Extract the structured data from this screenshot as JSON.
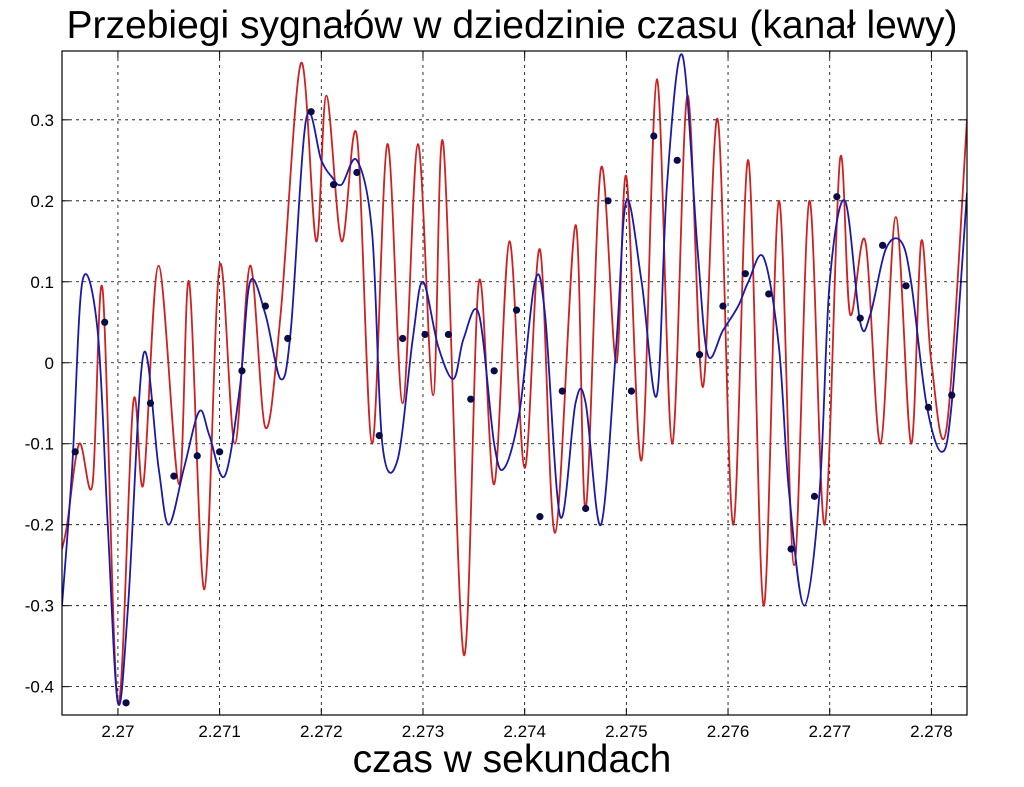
{
  "chart_data": {
    "type": "line",
    "title": "Przebiegi sygnałów w dziedzinie czasu (kanał lewy)",
    "xlabel": "czas w sekundach",
    "ylabel": "",
    "xlim": [
      2.26945,
      2.27835
    ],
    "ylim": [
      -0.435,
      0.385
    ],
    "grid": true,
    "xticks": [
      2.27,
      2.271,
      2.272,
      2.273,
      2.274,
      2.275,
      2.276,
      2.277,
      2.278
    ],
    "xtick_labels": [
      "2.27",
      "2.271",
      "2.272",
      "2.273",
      "2.274",
      "2.275",
      "2.276",
      "2.277",
      "2.278"
    ],
    "yticks": [
      -0.4,
      -0.3,
      -0.2,
      -0.1,
      0,
      0.1,
      0.2,
      0.3
    ],
    "ytick_labels": [
      "-0.4",
      "-0.3",
      "-0.2",
      "-0.1",
      "0",
      "0.1",
      "0.2",
      "0.3"
    ],
    "colors": {
      "red": "#cc2222",
      "blue": "#1a1aa8",
      "marker": "#0b0b48",
      "grid": "#000000"
    },
    "series": [
      {
        "color": "red",
        "style": "line",
        "x": [
          2.26945,
          2.2695,
          2.26962,
          2.26975,
          2.26985,
          2.27,
          2.27015,
          2.27025,
          2.2704,
          2.2706,
          2.2707,
          2.27085,
          2.271,
          2.27115,
          2.2713,
          2.27145,
          2.2716,
          2.2718,
          2.27195,
          2.27205,
          2.2722,
          2.27235,
          2.2725,
          2.27265,
          2.2728,
          2.27295,
          2.2731,
          2.2732,
          2.2734,
          2.27355,
          2.2737,
          2.27385,
          2.274,
          2.27415,
          2.2743,
          2.2745,
          2.2746,
          2.27475,
          2.2749,
          2.275,
          2.27515,
          2.2753,
          2.27545,
          2.2756,
          2.27575,
          2.2759,
          2.27605,
          2.2762,
          2.27635,
          2.2765,
          2.27665,
          2.2768,
          2.27695,
          2.2771,
          2.2772,
          2.27735,
          2.2775,
          2.27765,
          2.2778,
          2.2779,
          2.278,
          2.27815,
          2.27835
        ],
        "y": [
          -0.23,
          -0.2,
          -0.1,
          -0.15,
          0.09,
          -0.42,
          -0.05,
          -0.15,
          0.12,
          -0.15,
          0.1,
          -0.28,
          0.12,
          -0.1,
          0.12,
          -0.08,
          0.06,
          0.37,
          0.15,
          0.33,
          0.15,
          0.28,
          -0.1,
          0.27,
          -0.05,
          0.27,
          -0.04,
          0.27,
          -0.36,
          0.1,
          -0.15,
          0.15,
          -0.13,
          0.14,
          -0.21,
          0.17,
          -0.18,
          0.24,
          0.0,
          0.23,
          -0.12,
          0.35,
          -0.1,
          0.33,
          -0.03,
          0.3,
          -0.2,
          0.25,
          -0.3,
          0.2,
          -0.25,
          0.2,
          -0.2,
          0.25,
          0.06,
          0.15,
          -0.1,
          0.18,
          -0.1,
          0.15,
          0.0,
          -0.08,
          0.3
        ]
      },
      {
        "color": "blue",
        "style": "line",
        "x": [
          2.26945,
          2.26955,
          2.26965,
          2.2698,
          2.2699,
          2.27,
          2.2701,
          2.27025,
          2.2704,
          2.2705,
          2.27065,
          2.2708,
          2.2709,
          2.27105,
          2.2712,
          2.2713,
          2.27145,
          2.2716,
          2.2717,
          2.27185,
          2.272,
          2.2721,
          2.2722,
          2.27235,
          2.2725,
          2.2726,
          2.27275,
          2.2729,
          2.273,
          2.27315,
          2.2733,
          2.2734,
          2.27355,
          2.2737,
          2.2738,
          2.27395,
          2.2741,
          2.2742,
          2.27435,
          2.2745,
          2.2746,
          2.27475,
          2.2749,
          2.275,
          2.27515,
          2.2753,
          2.2754,
          2.27555,
          2.2757,
          2.2758,
          2.27595,
          2.2761,
          2.2762,
          2.27635,
          2.2765,
          2.2766,
          2.27675,
          2.2769,
          2.277,
          2.27715,
          2.2773,
          2.2774,
          2.27755,
          2.2777,
          2.2778,
          2.27795,
          2.2781,
          2.2782,
          2.27835
        ],
        "y": [
          -0.3,
          -0.13,
          0.1,
          0.04,
          -0.2,
          -0.42,
          -0.3,
          0.01,
          -0.13,
          -0.2,
          -0.13,
          -0.06,
          -0.09,
          -0.14,
          -0.03,
          0.1,
          0.06,
          -0.02,
          0.04,
          0.3,
          0.25,
          0.23,
          0.22,
          0.25,
          0.16,
          -0.1,
          -0.12,
          0.03,
          0.1,
          0.02,
          -0.02,
          0.03,
          0.06,
          -0.1,
          -0.13,
          -0.06,
          0.1,
          0.06,
          -0.19,
          -0.05,
          -0.05,
          -0.2,
          0.02,
          0.2,
          0.1,
          -0.04,
          0.22,
          0.38,
          0.14,
          0.01,
          0.04,
          0.07,
          0.1,
          0.13,
          0.02,
          -0.16,
          -0.3,
          -0.16,
          0.1,
          0.2,
          0.05,
          0.06,
          0.14,
          0.15,
          0.1,
          -0.05,
          -0.11,
          -0.05,
          0.21
        ]
      },
      {
        "color": "marker",
        "style": "markers",
        "x": [
          2.26958,
          2.26987,
          2.27008,
          2.27032,
          2.27055,
          2.27078,
          2.271,
          2.27122,
          2.27145,
          2.27167,
          2.2719,
          2.27212,
          2.27235,
          2.27257,
          2.2728,
          2.27302,
          2.27325,
          2.27347,
          2.2737,
          2.27392,
          2.27415,
          2.27437,
          2.2746,
          2.27482,
          2.27505,
          2.27527,
          2.2755,
          2.27572,
          2.27595,
          2.27617,
          2.2764,
          2.27662,
          2.27685,
          2.27707,
          2.2773,
          2.27752,
          2.27775,
          2.27797,
          2.2782
        ],
        "y": [
          -0.11,
          0.05,
          -0.42,
          -0.05,
          -0.14,
          -0.115,
          -0.11,
          -0.01,
          0.07,
          0.03,
          0.31,
          0.22,
          0.235,
          -0.09,
          0.03,
          0.035,
          0.035,
          -0.045,
          -0.01,
          0.065,
          -0.19,
          -0.035,
          -0.18,
          0.2,
          -0.035,
          0.28,
          0.25,
          0.01,
          0.07,
          0.11,
          0.085,
          -0.23,
          -0.165,
          0.205,
          0.055,
          0.145,
          0.095,
          -0.055,
          -0.04
        ]
      }
    ]
  }
}
